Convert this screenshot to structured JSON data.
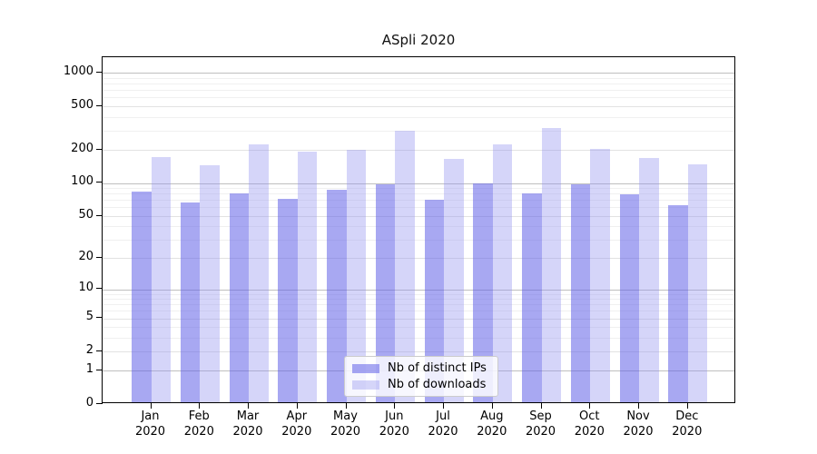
{
  "title": "ASpli 2020",
  "chart_data": {
    "type": "bar",
    "title": "ASpli 2020",
    "months": [
      "Jan",
      "Feb",
      "Mar",
      "Apr",
      "May",
      "Jun",
      "Jul",
      "Aug",
      "Sep",
      "Oct",
      "Nov",
      "Dec"
    ],
    "year": "2020",
    "series": [
      {
        "key": "distinct-ips",
        "name": "Nb of distinct IPs",
        "color": "rgba(97,97,232,0.55)",
        "values": [
          83,
          66,
          80,
          71,
          87,
          97,
          70,
          99,
          81,
          97,
          78,
          62
        ]
      },
      {
        "key": "downloads",
        "name": "Nb of downloads",
        "color": "rgba(150,150,240,0.40)",
        "values": [
          172,
          145,
          226,
          193,
          202,
          300,
          165,
          224,
          315,
          203,
          170,
          148
        ]
      }
    ],
    "y_axis": {
      "scale": "log1p",
      "ticks": [
        0,
        1,
        2,
        5,
        10,
        20,
        50,
        100,
        200,
        500,
        1000
      ],
      "decade_ticks": [
        1,
        10,
        100,
        1000
      ],
      "minor_gridlines": [
        3,
        4,
        6,
        7,
        8,
        9,
        30,
        40,
        60,
        70,
        80,
        90,
        300,
        400,
        600,
        700,
        800,
        900
      ],
      "ylim": [
        0,
        1400
      ]
    },
    "legend": {
      "position": "lower center"
    },
    "grid": true
  },
  "colors": {
    "background": "#ffffff",
    "spine": "#000000",
    "grid_major": "#bfbfbf",
    "grid_tick": "#e2e2e2",
    "grid_minor": "#f0f0f0",
    "legend_border": "#cccccc",
    "text": "#000000"
  }
}
